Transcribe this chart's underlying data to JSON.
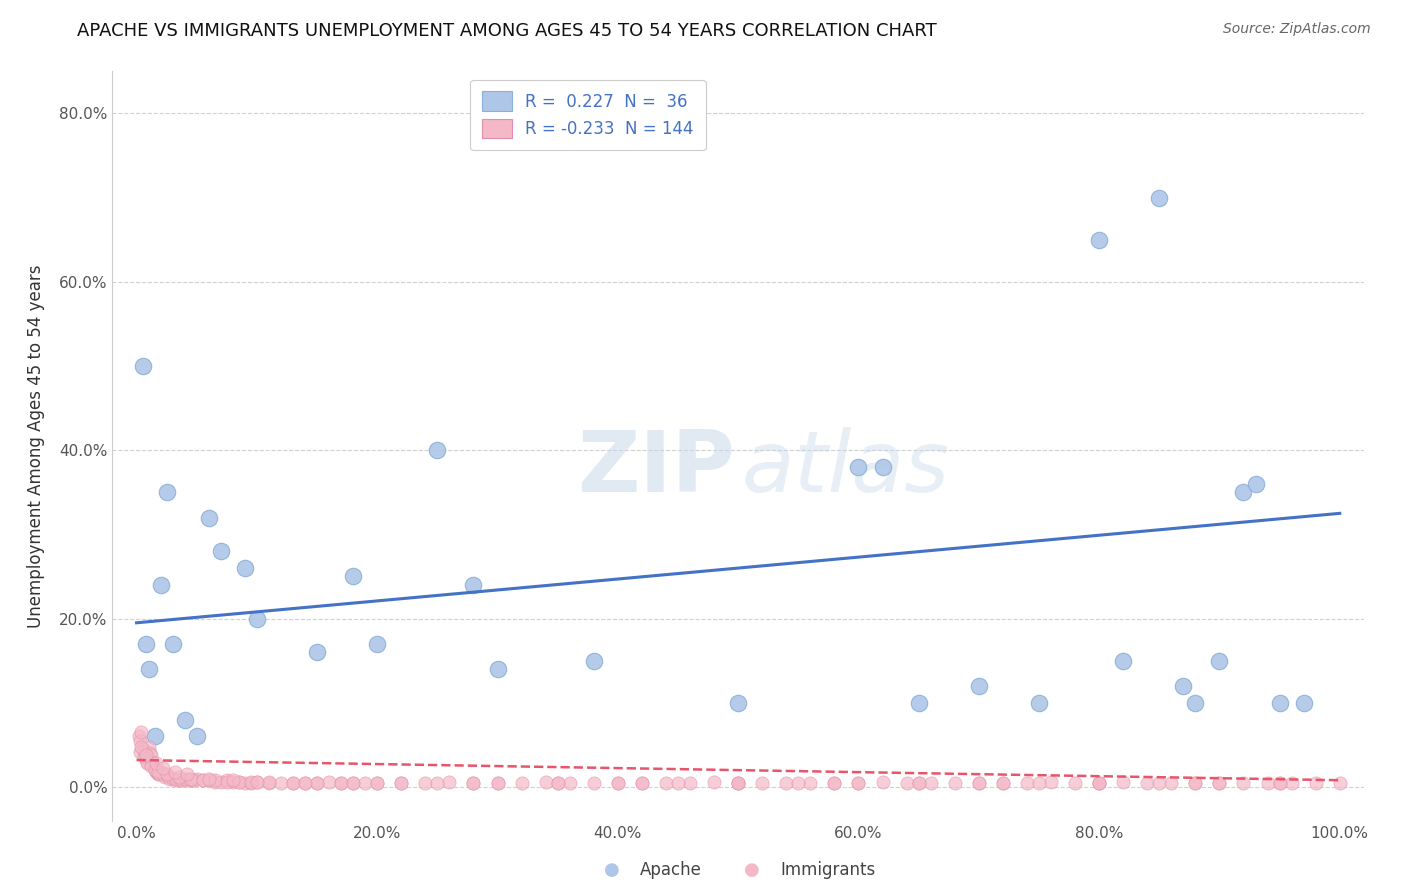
{
  "title": "APACHE VS IMMIGRANTS UNEMPLOYMENT AMONG AGES 45 TO 54 YEARS CORRELATION CHART",
  "source": "Source: ZipAtlas.com",
  "ylabel": "Unemployment Among Ages 45 to 54 years",
  "xlim": [
    -0.02,
    1.02
  ],
  "ylim": [
    -0.04,
    0.85
  ],
  "xticks": [
    0.0,
    0.2,
    0.4,
    0.6,
    0.8,
    1.0
  ],
  "xticklabels": [
    "0.0%",
    "20.0%",
    "40.0%",
    "60.0%",
    "80.0%",
    "100.0%"
  ],
  "yticks": [
    0.0,
    0.2,
    0.4,
    0.6,
    0.8
  ],
  "yticklabels": [
    "0.0%",
    "20.0%",
    "40.0%",
    "60.0%",
    "80.0%"
  ],
  "apache_color": "#aec6e8",
  "immigrants_color": "#f4b8c8",
  "apache_line_color": "#4472c4",
  "immigrants_line_color": "#e8546a",
  "background_color": "#ffffff",
  "grid_color": "#cccccc",
  "apache_line_y0": 0.195,
  "apache_line_y1": 0.325,
  "imm_line_y0": 0.032,
  "imm_line_y1": 0.008,
  "apache_points_x": [
    0.005,
    0.008,
    0.01,
    0.015,
    0.02,
    0.025,
    0.03,
    0.04,
    0.05,
    0.06,
    0.07,
    0.09,
    0.1,
    0.15,
    0.18,
    0.2,
    0.25,
    0.28,
    0.3,
    0.38,
    0.5,
    0.6,
    0.62,
    0.65,
    0.7,
    0.75,
    0.8,
    0.82,
    0.85,
    0.87,
    0.88,
    0.9,
    0.92,
    0.93,
    0.95,
    0.97
  ],
  "apache_points_y": [
    0.5,
    0.17,
    0.14,
    0.06,
    0.24,
    0.35,
    0.17,
    0.08,
    0.06,
    0.32,
    0.28,
    0.26,
    0.2,
    0.16,
    0.25,
    0.17,
    0.4,
    0.24,
    0.14,
    0.15,
    0.1,
    0.38,
    0.38,
    0.1,
    0.12,
    0.1,
    0.65,
    0.15,
    0.7,
    0.12,
    0.1,
    0.15,
    0.35,
    0.36,
    0.1,
    0.1
  ],
  "immigrants_points_x": [
    0.002,
    0.003,
    0.004,
    0.005,
    0.006,
    0.007,
    0.008,
    0.009,
    0.01,
    0.011,
    0.012,
    0.013,
    0.014,
    0.015,
    0.016,
    0.017,
    0.018,
    0.019,
    0.02,
    0.022,
    0.024,
    0.026,
    0.028,
    0.03,
    0.032,
    0.034,
    0.036,
    0.038,
    0.04,
    0.042,
    0.044,
    0.046,
    0.048,
    0.05,
    0.055,
    0.06,
    0.065,
    0.07,
    0.075,
    0.08,
    0.085,
    0.09,
    0.095,
    0.1,
    0.11,
    0.12,
    0.13,
    0.14,
    0.15,
    0.16,
    0.17,
    0.18,
    0.19,
    0.2,
    0.22,
    0.24,
    0.26,
    0.28,
    0.3,
    0.32,
    0.34,
    0.36,
    0.38,
    0.4,
    0.42,
    0.44,
    0.46,
    0.48,
    0.5,
    0.52,
    0.54,
    0.56,
    0.58,
    0.6,
    0.62,
    0.64,
    0.66,
    0.68,
    0.7,
    0.72,
    0.74,
    0.76,
    0.78,
    0.8,
    0.82,
    0.84,
    0.86,
    0.88,
    0.9,
    0.92,
    0.94,
    0.96,
    0.98,
    1.0,
    0.003,
    0.006,
    0.009,
    0.012,
    0.015,
    0.018,
    0.025,
    0.035,
    0.045,
    0.055,
    0.065,
    0.075,
    0.085,
    0.095,
    0.11,
    0.13,
    0.15,
    0.17,
    0.2,
    0.25,
    0.3,
    0.35,
    0.4,
    0.45,
    0.5,
    0.55,
    0.6,
    0.65,
    0.7,
    0.75,
    0.8,
    0.85,
    0.9,
    0.95,
    0.004,
    0.008,
    0.016,
    0.022,
    0.032,
    0.042,
    0.06,
    0.08,
    0.1,
    0.14,
    0.18,
    0.22,
    0.28,
    0.35,
    0.42,
    0.5,
    0.58,
    0.65,
    0.72,
    0.8,
    0.88,
    0.95
  ],
  "immigrants_points_y": [
    0.06,
    0.055,
    0.065,
    0.045,
    0.038,
    0.042,
    0.035,
    0.03,
    0.048,
    0.04,
    0.038,
    0.03,
    0.025,
    0.022,
    0.018,
    0.018,
    0.015,
    0.015,
    0.018,
    0.015,
    0.012,
    0.012,
    0.01,
    0.01,
    0.01,
    0.008,
    0.008,
    0.008,
    0.01,
    0.008,
    0.01,
    0.008,
    0.008,
    0.01,
    0.008,
    0.008,
    0.006,
    0.006,
    0.008,
    0.006,
    0.006,
    0.005,
    0.005,
    0.006,
    0.005,
    0.005,
    0.005,
    0.005,
    0.005,
    0.006,
    0.005,
    0.005,
    0.005,
    0.005,
    0.005,
    0.005,
    0.006,
    0.005,
    0.005,
    0.005,
    0.006,
    0.005,
    0.005,
    0.005,
    0.005,
    0.005,
    0.005,
    0.006,
    0.005,
    0.005,
    0.005,
    0.005,
    0.005,
    0.005,
    0.006,
    0.005,
    0.005,
    0.005,
    0.005,
    0.005,
    0.005,
    0.006,
    0.005,
    0.005,
    0.006,
    0.005,
    0.005,
    0.005,
    0.005,
    0.005,
    0.005,
    0.005,
    0.005,
    0.005,
    0.042,
    0.035,
    0.028,
    0.025,
    0.02,
    0.018,
    0.015,
    0.012,
    0.01,
    0.008,
    0.008,
    0.006,
    0.006,
    0.006,
    0.006,
    0.005,
    0.005,
    0.005,
    0.005,
    0.005,
    0.005,
    0.005,
    0.005,
    0.005,
    0.005,
    0.005,
    0.005,
    0.005,
    0.005,
    0.005,
    0.005,
    0.005,
    0.005,
    0.005,
    0.048,
    0.038,
    0.028,
    0.022,
    0.018,
    0.015,
    0.01,
    0.008,
    0.006,
    0.005,
    0.005,
    0.005,
    0.005,
    0.005,
    0.005,
    0.005,
    0.005,
    0.005,
    0.005,
    0.005,
    0.005,
    0.005
  ]
}
